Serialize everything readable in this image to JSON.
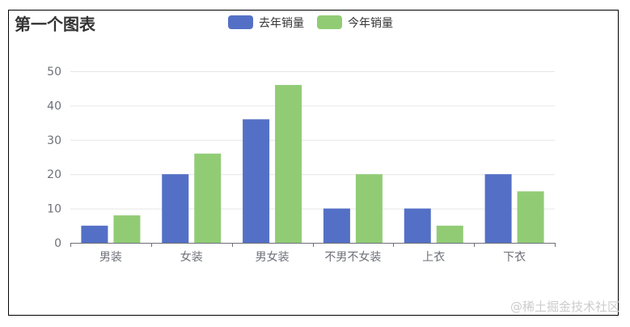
{
  "chart_data": {
    "type": "bar",
    "title": "第一个图表",
    "categories": [
      "男装",
      "女装",
      "男女装",
      "不男不女装",
      "上衣",
      "下衣"
    ],
    "series": [
      {
        "name": "去年销量",
        "values": [
          5,
          20,
          36,
          10,
          10,
          20
        ],
        "color": "#5470c6"
      },
      {
        "name": "今年销量",
        "values": [
          8,
          26,
          46,
          20,
          5,
          15
        ],
        "color": "#91cc75"
      }
    ],
    "ylim": [
      0,
      50
    ],
    "yticks": [
      0,
      10,
      20,
      30,
      40,
      50
    ],
    "grid": true,
    "legend": "top-center"
  },
  "watermark": "@稀土掘金技术社区"
}
